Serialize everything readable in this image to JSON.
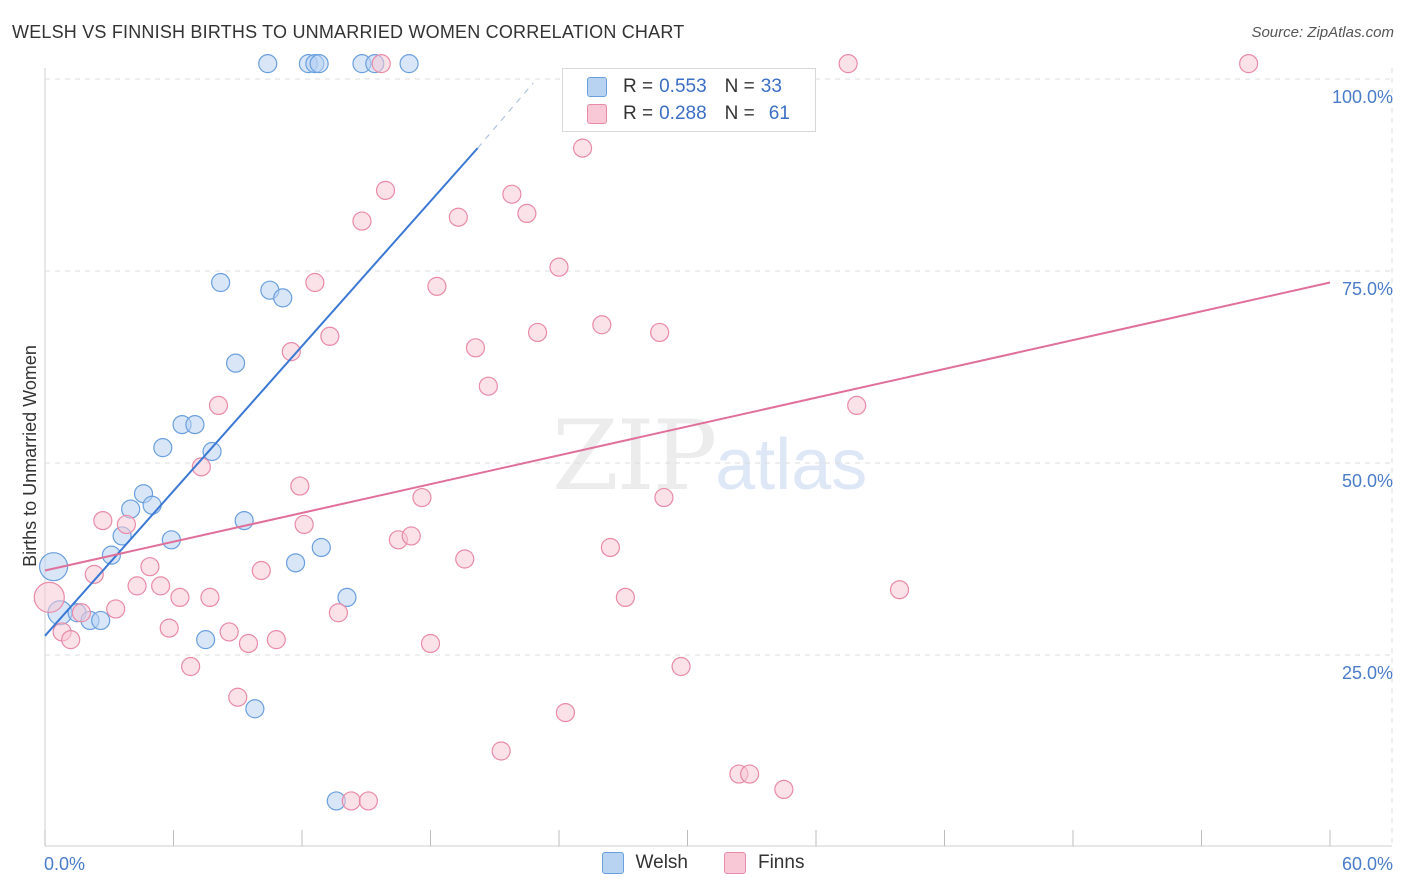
{
  "title": "WELSH VS FINNISH BIRTHS TO UNMARRIED WOMEN CORRELATION CHART",
  "source": "Source: ZipAtlas.com",
  "watermark": {
    "zip": "ZIP",
    "atlas": "atlas"
  },
  "legend": {
    "r_label": "R =",
    "n_label": "N =",
    "welsh": {
      "r": "0.553",
      "n": "33"
    },
    "finns": {
      "r": "0.288",
      "n": "61"
    }
  },
  "bottom_legend": {
    "welsh": "Welsh",
    "finns": "Finns"
  },
  "colors": {
    "welsh_fill": "#b8d2f2",
    "welsh_stroke": "#6a9fdd",
    "welsh_line": "#3a78d4",
    "finns_fill": "#f8c8d6",
    "finns_stroke": "#e98aa8",
    "finns_line": "#e0709a",
    "grid": "#dddddd",
    "tick_label": "#4a7cc9"
  },
  "chart_data": {
    "type": "scatter",
    "title": "WELSH VS FINNISH BIRTHS TO UNMARRIED WOMEN CORRELATION CHART",
    "xlabel": "",
    "ylabel": "Births to Unmarried Women",
    "xlim": [
      0,
      60
    ],
    "ylim": [
      0,
      104
    ],
    "x_tick_labels": [
      "0.0%",
      "60.0%"
    ],
    "y_ticks": [
      25,
      50,
      75,
      100
    ],
    "y_tick_labels": [
      "25.0%",
      "50.0%",
      "75.0%",
      "100.0%"
    ],
    "grid": true,
    "series": [
      {
        "name": "Welsh",
        "r": 0.553,
        "n": 33,
        "trend": {
          "x0": 0,
          "y0": 27.5,
          "x1": 20.2,
          "y1": 91.0,
          "dash_x1": 22.8,
          "dash_y1": 99.5
        },
        "points": [
          [
            0.4,
            36.5,
            14
          ],
          [
            0.7,
            30.5,
            12
          ],
          [
            1.5,
            30.5,
            9
          ],
          [
            2.1,
            29.5,
            9
          ],
          [
            2.6,
            29.5,
            9
          ],
          [
            3.1,
            38.0,
            9
          ],
          [
            3.6,
            40.5,
            9
          ],
          [
            4.0,
            44.0,
            9
          ],
          [
            4.6,
            46.0,
            9
          ],
          [
            5.0,
            44.5,
            9
          ],
          [
            5.5,
            52.0,
            9
          ],
          [
            5.9,
            40.0,
            9
          ],
          [
            6.4,
            55.0,
            9
          ],
          [
            7.0,
            55.0,
            9
          ],
          [
            7.5,
            27.0,
            9
          ],
          [
            7.8,
            51.5,
            9
          ],
          [
            8.2,
            73.5,
            9
          ],
          [
            8.9,
            63.0,
            9
          ],
          [
            9.3,
            42.5,
            9
          ],
          [
            9.8,
            18.0,
            9
          ],
          [
            10.5,
            72.5,
            9
          ],
          [
            11.1,
            71.5,
            9
          ],
          [
            11.7,
            37.0,
            9
          ],
          [
            12.9,
            39.0,
            9
          ],
          [
            13.6,
            6.0,
            9
          ],
          [
            14.1,
            32.5,
            9
          ],
          [
            10.4,
            102.0,
            9
          ],
          [
            12.3,
            102.0,
            9
          ],
          [
            12.6,
            102.0,
            9
          ],
          [
            14.8,
            102.0,
            9
          ],
          [
            15.4,
            102.0,
            9
          ],
          [
            17.0,
            102.0,
            9
          ],
          [
            12.8,
            102.0,
            9
          ]
        ]
      },
      {
        "name": "Finns",
        "r": 0.288,
        "n": 61,
        "trend": {
          "x0": 0,
          "y0": 36.0,
          "x1": 60,
          "y1": 73.5
        },
        "points": [
          [
            0.2,
            32.5,
            15
          ],
          [
            0.8,
            28.0,
            9
          ],
          [
            1.2,
            27.0,
            9
          ],
          [
            1.7,
            30.5,
            9
          ],
          [
            2.3,
            35.5,
            9
          ],
          [
            2.7,
            42.5,
            9
          ],
          [
            3.3,
            31.0,
            9
          ],
          [
            3.8,
            42.0,
            9
          ],
          [
            4.3,
            34.0,
            9
          ],
          [
            4.9,
            36.5,
            9
          ],
          [
            5.4,
            34.0,
            9
          ],
          [
            5.8,
            28.5,
            9
          ],
          [
            6.3,
            32.5,
            9
          ],
          [
            6.8,
            23.5,
            9
          ],
          [
            7.3,
            49.5,
            9
          ],
          [
            7.7,
            32.5,
            9
          ],
          [
            8.1,
            57.5,
            9
          ],
          [
            8.6,
            28.0,
            9
          ],
          [
            9.0,
            19.5,
            9
          ],
          [
            9.5,
            26.5,
            9
          ],
          [
            10.1,
            36.0,
            9
          ],
          [
            10.8,
            27.0,
            9
          ],
          [
            11.5,
            64.5,
            9
          ],
          [
            11.9,
            47.0,
            9
          ],
          [
            12.1,
            42.0,
            9
          ],
          [
            12.6,
            73.5,
            9
          ],
          [
            13.3,
            66.5,
            9
          ],
          [
            13.7,
            30.5,
            9
          ],
          [
            14.3,
            6.0,
            9
          ],
          [
            14.8,
            81.5,
            9
          ],
          [
            15.1,
            6.0,
            9
          ],
          [
            15.7,
            102.0,
            9
          ],
          [
            15.9,
            85.5,
            9
          ],
          [
            16.5,
            40.0,
            9
          ],
          [
            17.1,
            40.5,
            9
          ],
          [
            17.6,
            45.5,
            9
          ],
          [
            18.0,
            26.5,
            9
          ],
          [
            18.3,
            73.0,
            9
          ],
          [
            19.3,
            82.0,
            9
          ],
          [
            19.6,
            37.5,
            9
          ],
          [
            20.1,
            65.0,
            9
          ],
          [
            20.7,
            60.0,
            9
          ],
          [
            21.3,
            12.5,
            9
          ],
          [
            21.8,
            85.0,
            9
          ],
          [
            22.5,
            82.5,
            9
          ],
          [
            23.0,
            67.0,
            9
          ],
          [
            24.0,
            75.5,
            9
          ],
          [
            24.3,
            17.5,
            9
          ],
          [
            25.1,
            91.0,
            9
          ],
          [
            26.0,
            68.0,
            9
          ],
          [
            26.4,
            39.0,
            9
          ],
          [
            27.1,
            32.5,
            9
          ],
          [
            28.7,
            67.0,
            9
          ],
          [
            28.9,
            45.5,
            9
          ],
          [
            29.7,
            23.5,
            9
          ],
          [
            32.4,
            9.5,
            9
          ],
          [
            32.9,
            9.5,
            9
          ],
          [
            34.5,
            7.5,
            9
          ],
          [
            37.5,
            102.0,
            9
          ],
          [
            37.9,
            57.5,
            9
          ],
          [
            39.9,
            33.5,
            9
          ]
        ],
        "extra_points": [
          [
            56.2,
            102.0,
            9
          ]
        ]
      }
    ]
  }
}
